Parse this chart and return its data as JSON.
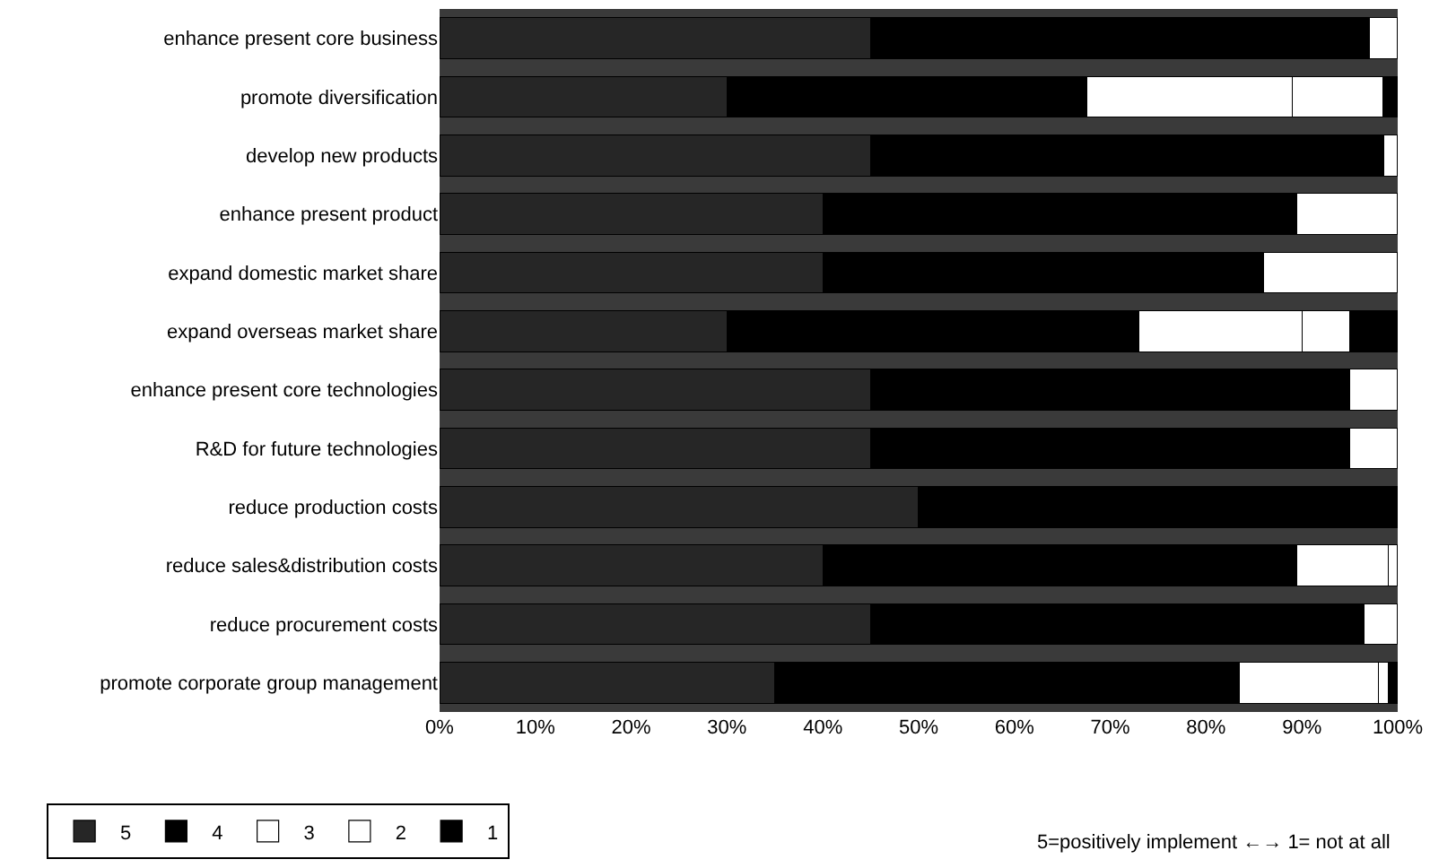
{
  "chart_data": {
    "type": "bar",
    "orientation": "horizontal",
    "stacked": true,
    "categories": [
      "enhance present core business",
      "promote diversification",
      "develop new products",
      "enhance present product",
      "expand domestic market share",
      "expand overseas market share",
      "enhance present core technologies",
      "R&D for future technologies",
      "reduce production costs",
      "reduce sales&distribution costs",
      "reduce procurement costs",
      "promote corporate group management"
    ],
    "series": [
      {
        "name": "5",
        "color": "#262626",
        "values": [
          45,
          30,
          45,
          40,
          40,
          30,
          45,
          45,
          50,
          40,
          45,
          35
        ]
      },
      {
        "name": "4",
        "color": "#000000",
        "values": [
          52,
          37.5,
          53.5,
          49.5,
          46,
          43,
          50,
          50,
          50,
          49.5,
          51.5,
          48.5
        ]
      },
      {
        "name": "3",
        "color": "#ffffff",
        "values": [
          3,
          21.5,
          1.5,
          10.5,
          14,
          17,
          5,
          5,
          0,
          9.5,
          3.5,
          14.5
        ]
      },
      {
        "name": "2",
        "color": "#ffffff",
        "values": [
          0,
          9.5,
          0,
          0,
          0,
          5,
          0,
          0,
          0,
          1,
          0,
          1
        ]
      },
      {
        "name": "1",
        "color": "#000000",
        "values": [
          0,
          1.5,
          0,
          0,
          0,
          5,
          0,
          0,
          0,
          0,
          0,
          1
        ]
      }
    ],
    "xlim": [
      0,
      100
    ],
    "xticks": [
      {
        "value": 0,
        "label": "0%"
      },
      {
        "value": 10,
        "label": "10%"
      },
      {
        "value": 20,
        "label": "20%"
      },
      {
        "value": 30,
        "label": "30%"
      },
      {
        "value": 40,
        "label": "40%"
      },
      {
        "value": 50,
        "label": "50%"
      },
      {
        "value": 60,
        "label": "60%"
      },
      {
        "value": 70,
        "label": "70%"
      },
      {
        "value": 80,
        "label": "80%"
      },
      {
        "value": 90,
        "label": "90%"
      },
      {
        "value": 100,
        "label": "100%"
      }
    ],
    "grid": false,
    "legend": "bottom left",
    "annotations": [
      "5=positively implement ←→ 1= not at all"
    ]
  }
}
